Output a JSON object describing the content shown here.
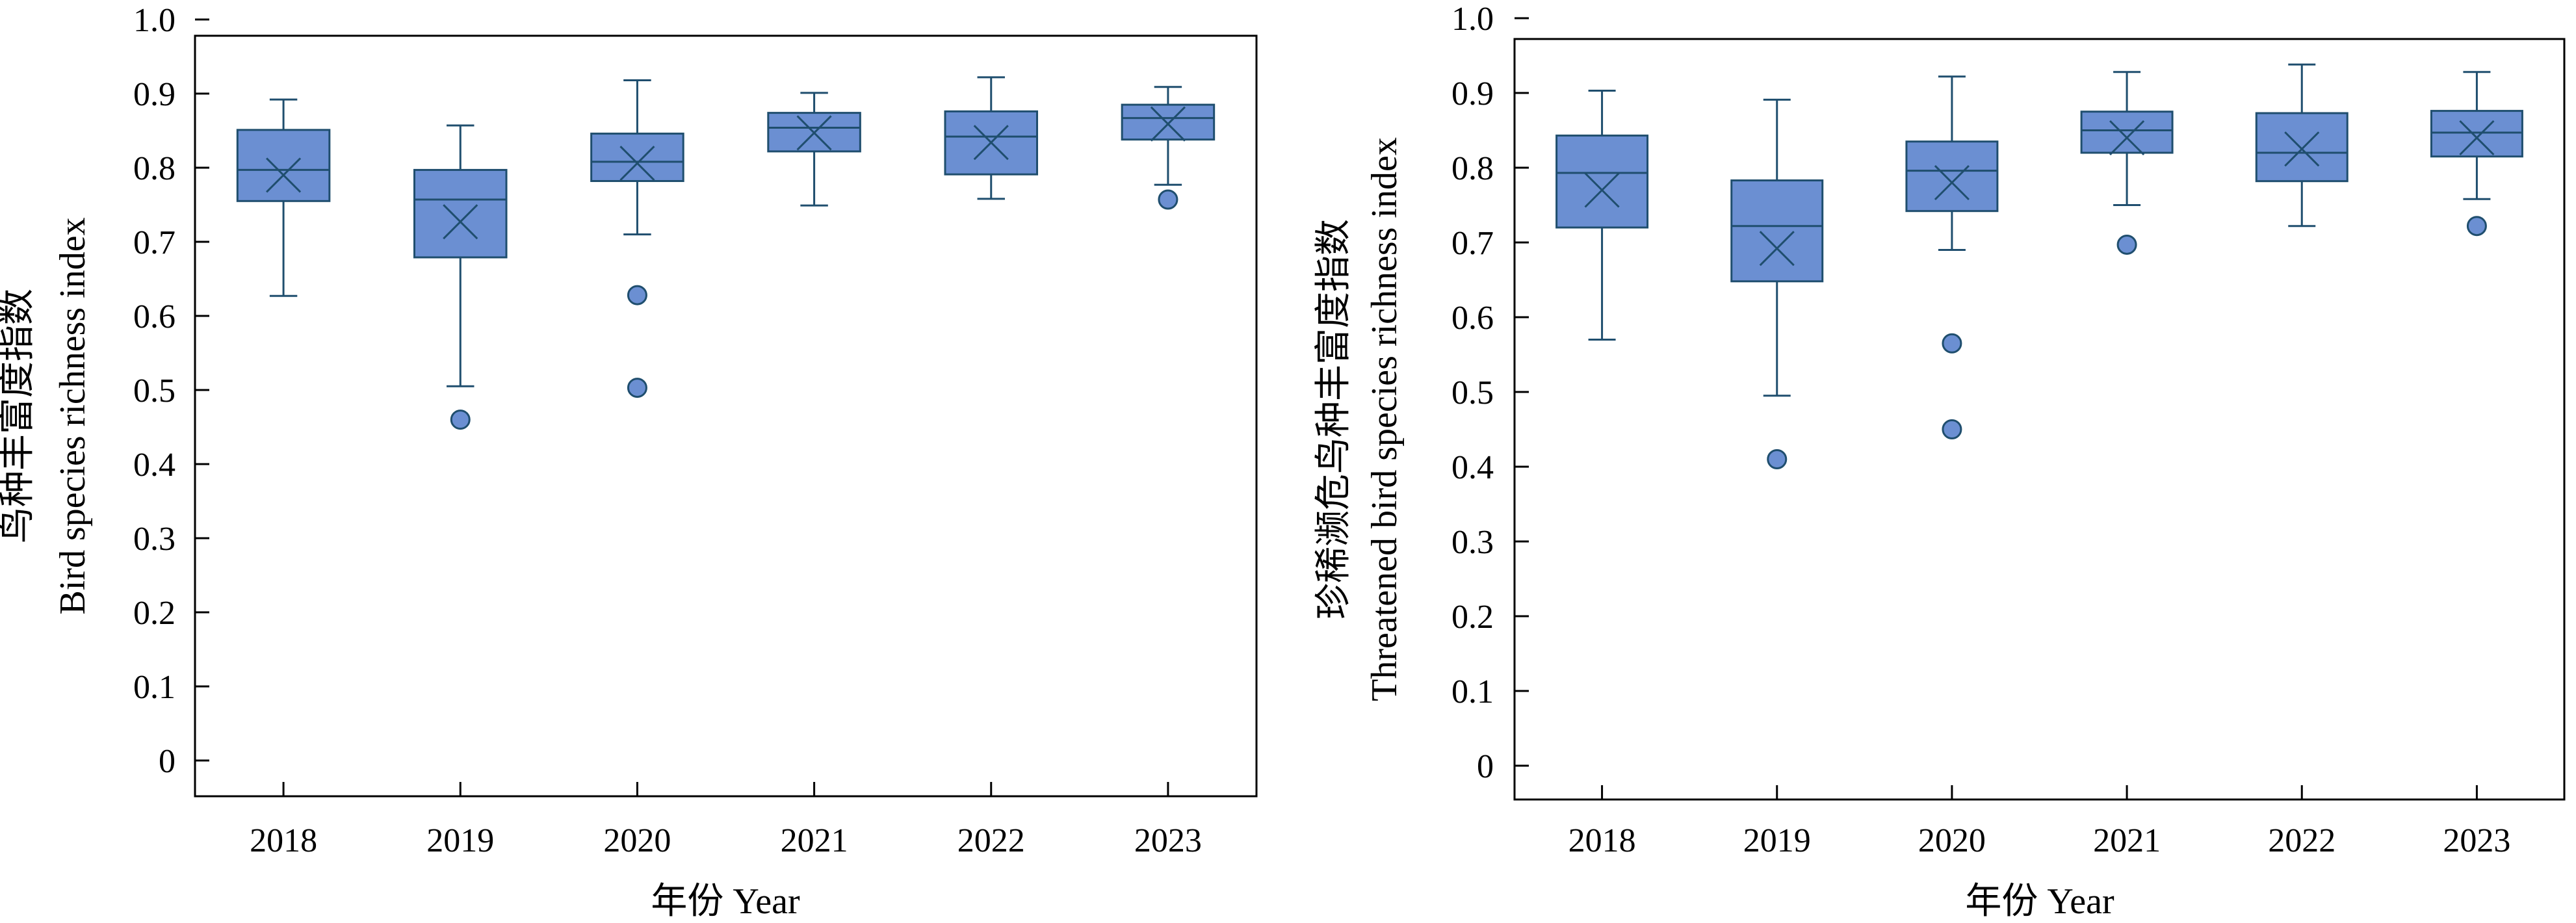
{
  "chart_data": [
    {
      "type": "box",
      "xlabel": "年份 Year",
      "ylabel_cn": "鸟种丰富度指数",
      "ylabel_en": "Bird species richness index",
      "ylim": [
        0,
        1.0
      ],
      "yticks": [
        "0",
        "0.1",
        "0.2",
        "0.3",
        "0.4",
        "0.5",
        "0.6",
        "0.7",
        "0.8",
        "0.9",
        "1.0"
      ],
      "grid": false,
      "legend": "none",
      "categories": [
        "2018",
        "2019",
        "2020",
        "2021",
        "2022",
        "2023"
      ],
      "boxes": [
        {
          "category": "2018",
          "min": 0.627,
          "q1": 0.755,
          "median": 0.797,
          "q3": 0.851,
          "max": 0.892,
          "mean": 0.79,
          "outliers": []
        },
        {
          "category": "2019",
          "min": 0.505,
          "q1": 0.679,
          "median": 0.757,
          "q3": 0.797,
          "max": 0.857,
          "mean": 0.727,
          "outliers": [
            0.46
          ]
        },
        {
          "category": "2020",
          "min": 0.71,
          "q1": 0.782,
          "median": 0.808,
          "q3": 0.846,
          "max": 0.918,
          "mean": 0.806,
          "outliers": [
            0.628,
            0.503
          ]
        },
        {
          "category": "2021",
          "min": 0.749,
          "q1": 0.822,
          "median": 0.854,
          "q3": 0.874,
          "max": 0.901,
          "mean": 0.847,
          "outliers": []
        },
        {
          "category": "2022",
          "min": 0.758,
          "q1": 0.791,
          "median": 0.842,
          "q3": 0.876,
          "max": 0.922,
          "mean": 0.834,
          "outliers": []
        },
        {
          "category": "2023",
          "min": 0.777,
          "q1": 0.838,
          "median": 0.867,
          "q3": 0.885,
          "max": 0.909,
          "mean": 0.859,
          "outliers": [
            0.757
          ]
        }
      ]
    },
    {
      "type": "box",
      "xlabel": "年份 Year",
      "ylabel_cn": "珍稀濒危鸟种丰富度指数",
      "ylabel_en": "Threatened bird species richness index",
      "ylim": [
        0,
        1.0
      ],
      "yticks": [
        "0",
        "0.1",
        "0.2",
        "0.3",
        "0.4",
        "0.5",
        "0.6",
        "0.7",
        "0.8",
        "0.9",
        "1.0"
      ],
      "grid": false,
      "legend": "none",
      "categories": [
        "2018",
        "2019",
        "2020",
        "2021",
        "2022",
        "2023"
      ],
      "boxes": [
        {
          "category": "2018",
          "min": 0.57,
          "q1": 0.72,
          "median": 0.793,
          "q3": 0.843,
          "max": 0.903,
          "mean": 0.77,
          "outliers": []
        },
        {
          "category": "2019",
          "min": 0.495,
          "q1": 0.648,
          "median": 0.722,
          "q3": 0.783,
          "max": 0.891,
          "mean": 0.692,
          "outliers": [
            0.41
          ]
        },
        {
          "category": "2020",
          "min": 0.69,
          "q1": 0.742,
          "median": 0.796,
          "q3": 0.835,
          "max": 0.922,
          "mean": 0.78,
          "outliers": [
            0.565,
            0.45
          ]
        },
        {
          "category": "2021",
          "min": 0.75,
          "q1": 0.82,
          "median": 0.85,
          "q3": 0.875,
          "max": 0.928,
          "mean": 0.84,
          "outliers": [
            0.697
          ]
        },
        {
          "category": "2022",
          "min": 0.722,
          "q1": 0.782,
          "median": 0.82,
          "q3": 0.873,
          "max": 0.938,
          "mean": 0.825,
          "outliers": []
        },
        {
          "category": "2023",
          "min": 0.758,
          "q1": 0.815,
          "median": 0.847,
          "q3": 0.876,
          "max": 0.928,
          "mean": 0.84,
          "outliers": [
            0.722
          ]
        }
      ]
    }
  ],
  "colors": {
    "box_fill": "#6b8fd2",
    "stroke": "#1f4e6e",
    "outlier_fill": "#6b8fd2"
  }
}
